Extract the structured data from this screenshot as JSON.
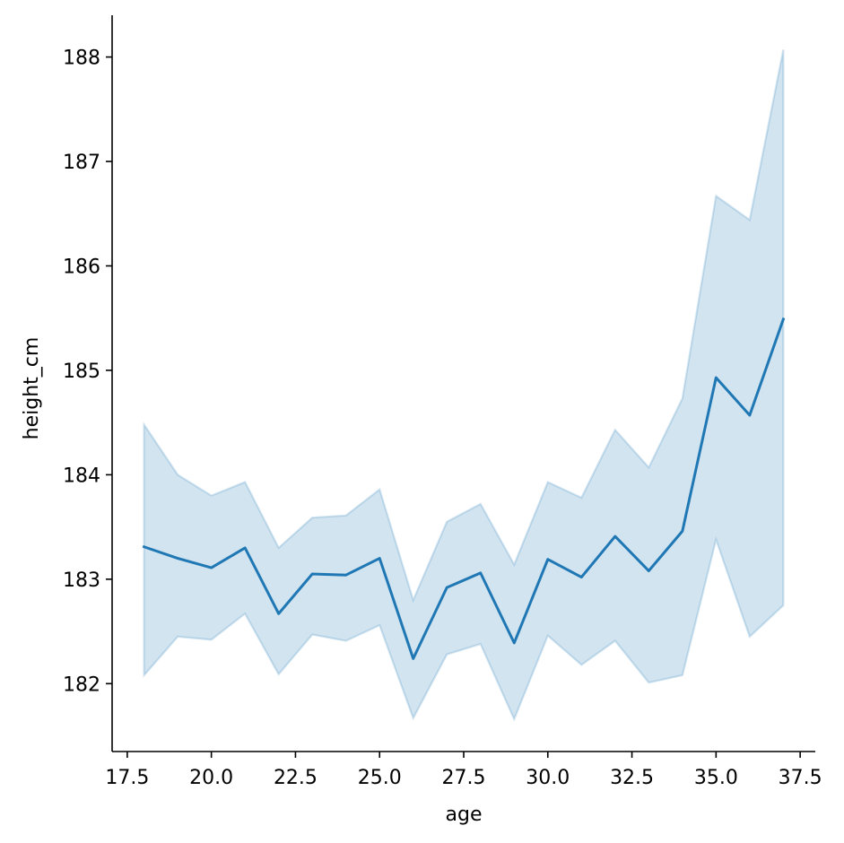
{
  "chart_data": {
    "type": "line",
    "title": "",
    "xlabel": "age",
    "ylabel": "height_cm",
    "xlim": [
      17.05,
      37.95
    ],
    "ylim": [
      181.35,
      188.4
    ],
    "x_ticks": [
      "17.5",
      "20.0",
      "22.5",
      "25.0",
      "27.5",
      "30.0",
      "32.5",
      "35.0",
      "37.5"
    ],
    "y_ticks": [
      "182",
      "183",
      "184",
      "185",
      "186",
      "187",
      "188"
    ],
    "grid": false,
    "legend": "none",
    "colors": {
      "line": "#1f77b4",
      "band": "#1f77b4"
    },
    "series": [
      {
        "x": [
          18,
          19,
          20,
          21,
          22,
          23,
          24,
          25,
          26,
          27,
          28,
          29,
          30,
          31,
          32,
          33,
          34,
          35,
          36,
          37
        ],
        "y": [
          183.31,
          183.2,
          183.11,
          183.3,
          182.67,
          183.05,
          183.04,
          183.2,
          182.24,
          182.92,
          183.06,
          182.39,
          183.19,
          183.02,
          183.41,
          183.08,
          183.46,
          184.93,
          184.57,
          185.49
        ],
        "lower": [
          182.08,
          182.45,
          182.42,
          182.67,
          182.09,
          182.47,
          182.41,
          182.56,
          181.67,
          182.28,
          182.38,
          181.66,
          182.46,
          182.18,
          182.41,
          182.01,
          182.08,
          183.38,
          182.45,
          182.75
        ],
        "upper": [
          184.48,
          184.0,
          183.8,
          183.93,
          183.3,
          183.59,
          183.61,
          183.86,
          182.8,
          183.55,
          183.72,
          183.14,
          183.93,
          183.78,
          184.43,
          184.07,
          184.73,
          186.67,
          186.44,
          188.07
        ]
      }
    ]
  }
}
